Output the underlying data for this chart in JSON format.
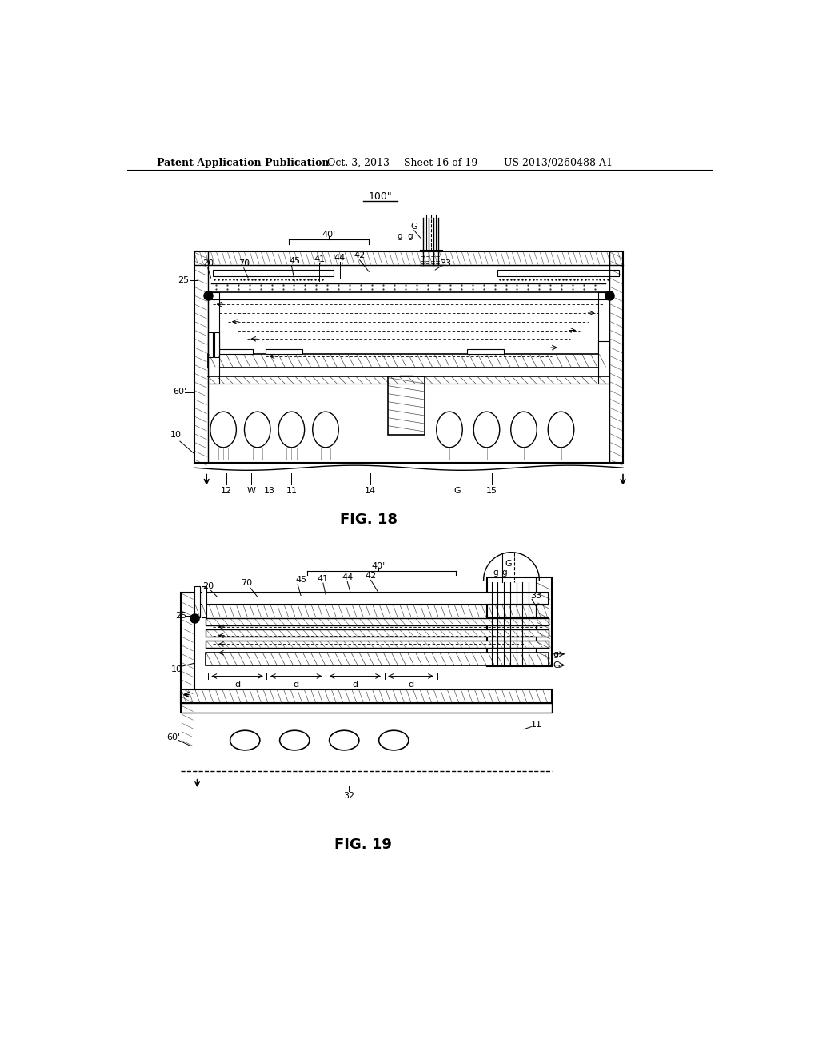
{
  "bg_color": "#ffffff",
  "header_text": "Patent Application Publication",
  "header_date": "Oct. 3, 2013",
  "header_sheet": "Sheet 16 of 19",
  "header_patent": "US 2013/0260488 A1",
  "fig18_label": "FIG. 18",
  "fig19_label": "FIG. 19"
}
